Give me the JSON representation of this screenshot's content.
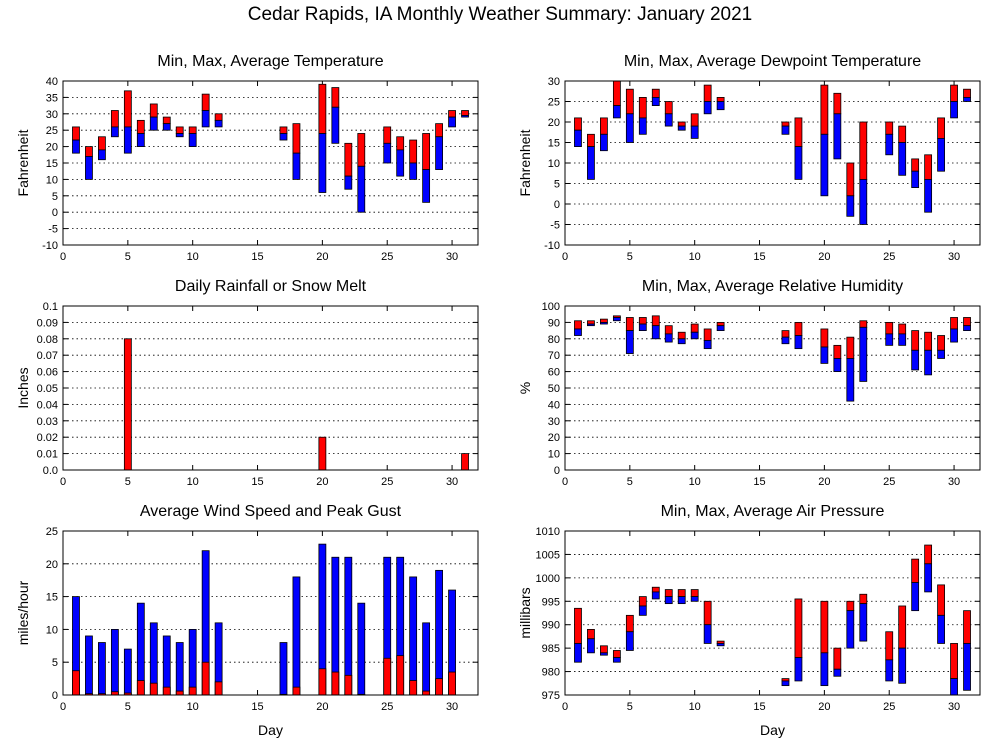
{
  "title": "Cedar Rapids, IA Monthly Weather Summary: January 2021",
  "colors": {
    "upper": "#ff0000",
    "lower": "#0000ff",
    "edge": "#000000"
  },
  "chart_data": [
    {
      "id": "temp",
      "type": "bar",
      "title": "Min, Max, Average Temperature",
      "ylabel": "Fahrenheit",
      "xlabel": "",
      "xlim": [
        0,
        32
      ],
      "ylim": [
        -10,
        40
      ],
      "xticks": [
        0,
        5,
        10,
        15,
        20,
        25,
        30
      ],
      "yticks": [
        -10,
        -5,
        0,
        5,
        10,
        15,
        20,
        25,
        30,
        35,
        40
      ],
      "grid": true,
      "points": [
        {
          "day": 1,
          "min": 18,
          "avg": 22,
          "max": 26
        },
        {
          "day": 2,
          "min": 10,
          "avg": 17,
          "max": 20
        },
        {
          "day": 3,
          "min": 16,
          "avg": 19,
          "max": 23
        },
        {
          "day": 4,
          "min": 23,
          "avg": 26,
          "max": 31
        },
        {
          "day": 5,
          "min": 18,
          "avg": 26,
          "max": 37
        },
        {
          "day": 6,
          "min": 20,
          "avg": 24,
          "max": 28
        },
        {
          "day": 7,
          "min": 25,
          "avg": 29,
          "max": 33
        },
        {
          "day": 8,
          "min": 25,
          "avg": 27,
          "max": 29
        },
        {
          "day": 9,
          "min": 23,
          "avg": 24,
          "max": 26
        },
        {
          "day": 10,
          "min": 20,
          "avg": 24,
          "max": 26
        },
        {
          "day": 11,
          "min": 26,
          "avg": 31,
          "max": 36
        },
        {
          "day": 12,
          "min": 26,
          "avg": 28,
          "max": 30
        },
        {
          "day": 17,
          "min": 22,
          "avg": 24,
          "max": 26
        },
        {
          "day": 18,
          "min": 10,
          "avg": 18,
          "max": 27
        },
        {
          "day": 20,
          "min": 6,
          "avg": 24,
          "max": 39
        },
        {
          "day": 21,
          "min": 21,
          "avg": 32,
          "max": 38
        },
        {
          "day": 22,
          "min": 7,
          "avg": 11,
          "max": 21
        },
        {
          "day": 23,
          "min": 0,
          "avg": 14,
          "max": 24
        },
        {
          "day": 25,
          "min": 15,
          "avg": 21,
          "max": 26
        },
        {
          "day": 26,
          "min": 11,
          "avg": 19,
          "max": 23
        },
        {
          "day": 27,
          "min": 10,
          "avg": 15,
          "max": 22
        },
        {
          "day": 28,
          "min": 3,
          "avg": 13,
          "max": 24
        },
        {
          "day": 29,
          "min": 13,
          "avg": 23,
          "max": 27
        },
        {
          "day": 30,
          "min": 26,
          "avg": 29,
          "max": 31
        },
        {
          "day": 31,
          "min": 29,
          "avg": 29.5,
          "max": 31
        }
      ]
    },
    {
      "id": "dewpoint",
      "type": "bar",
      "title": "Min, Max, Average Dewpoint Temperature",
      "ylabel": "Fahrenheit",
      "xlabel": "",
      "xlim": [
        0,
        32
      ],
      "ylim": [
        -10,
        30
      ],
      "xticks": [
        0,
        5,
        10,
        15,
        20,
        25,
        30
      ],
      "yticks": [
        -10,
        -5,
        0,
        5,
        10,
        15,
        20,
        25,
        30
      ],
      "grid": true,
      "points": [
        {
          "day": 1,
          "min": 14,
          "avg": 18,
          "max": 21
        },
        {
          "day": 2,
          "min": 6,
          "avg": 14,
          "max": 17
        },
        {
          "day": 3,
          "min": 13,
          "avg": 17,
          "max": 21
        },
        {
          "day": 4,
          "min": 21,
          "avg": 24,
          "max": 30
        },
        {
          "day": 5,
          "min": 15,
          "avg": 22,
          "max": 28
        },
        {
          "day": 6,
          "min": 17,
          "avg": 21,
          "max": 26
        },
        {
          "day": 7,
          "min": 24,
          "avg": 26,
          "max": 28
        },
        {
          "day": 8,
          "min": 19,
          "avg": 22,
          "max": 25
        },
        {
          "day": 9,
          "min": 18,
          "avg": 19,
          "max": 20
        },
        {
          "day": 10,
          "min": 16,
          "avg": 19,
          "max": 22
        },
        {
          "day": 11,
          "min": 22,
          "avg": 25,
          "max": 29
        },
        {
          "day": 12,
          "min": 23,
          "avg": 25,
          "max": 26
        },
        {
          "day": 17,
          "min": 17,
          "avg": 19,
          "max": 20
        },
        {
          "day": 18,
          "min": 6,
          "avg": 14,
          "max": 21
        },
        {
          "day": 20,
          "min": 2,
          "avg": 17,
          "max": 29
        },
        {
          "day": 21,
          "min": 11,
          "avg": 22,
          "max": 27
        },
        {
          "day": 22,
          "min": -3,
          "avg": 2,
          "max": 10
        },
        {
          "day": 23,
          "min": -5,
          "avg": 6,
          "max": 20
        },
        {
          "day": 25,
          "min": 12,
          "avg": 17,
          "max": 20
        },
        {
          "day": 26,
          "min": 7,
          "avg": 15,
          "max": 19
        },
        {
          "day": 27,
          "min": 4,
          "avg": 8,
          "max": 11
        },
        {
          "day": 28,
          "min": -2,
          "avg": 6,
          "max": 12
        },
        {
          "day": 29,
          "min": 8,
          "avg": 16,
          "max": 21
        },
        {
          "day": 30,
          "min": 21,
          "avg": 25,
          "max": 29
        },
        {
          "day": 31,
          "min": 25,
          "avg": 26,
          "max": 28
        }
      ]
    },
    {
      "id": "rain",
      "type": "bar",
      "title": "Daily Rainfall or Snow Melt",
      "ylabel": "Inches",
      "xlabel": "",
      "xlim": [
        0,
        32
      ],
      "ylim": [
        0,
        0.1
      ],
      "xticks": [
        0,
        5,
        10,
        15,
        20,
        25,
        30
      ],
      "yticks": [
        0,
        0.01,
        0.02,
        0.03,
        0.04,
        0.05,
        0.06,
        0.07,
        0.08,
        0.09,
        0.1
      ],
      "ytick_labels": [
        "0.0",
        "0.01",
        "0.02",
        "0.03",
        "0.04",
        "0.05",
        "0.06",
        "0.07",
        "0.08",
        "0.09",
        "0.1"
      ],
      "grid": true,
      "points": [
        {
          "day": 5,
          "value": 0.08
        },
        {
          "day": 20,
          "value": 0.02
        },
        {
          "day": 31,
          "value": 0.01
        }
      ]
    },
    {
      "id": "humidity",
      "type": "bar",
      "title": "Min, Max, Average Relative Humidity",
      "ylabel": "%",
      "xlabel": "",
      "xlim": [
        0,
        32
      ],
      "ylim": [
        0,
        100
      ],
      "xticks": [
        0,
        5,
        10,
        15,
        20,
        25,
        30
      ],
      "yticks": [
        0,
        10,
        20,
        30,
        40,
        50,
        60,
        70,
        80,
        90,
        100
      ],
      "grid": true,
      "points": [
        {
          "day": 1,
          "min": 82,
          "avg": 86,
          "max": 91
        },
        {
          "day": 2,
          "min": 88,
          "avg": 89,
          "max": 91
        },
        {
          "day": 3,
          "min": 89,
          "avg": 90,
          "max": 92
        },
        {
          "day": 4,
          "min": 91,
          "avg": 93,
          "max": 94
        },
        {
          "day": 5,
          "min": 71,
          "avg": 85,
          "max": 93
        },
        {
          "day": 6,
          "min": 85,
          "avg": 89,
          "max": 93
        },
        {
          "day": 7,
          "min": 80,
          "avg": 88,
          "max": 94
        },
        {
          "day": 8,
          "min": 78,
          "avg": 83,
          "max": 88
        },
        {
          "day": 9,
          "min": 77,
          "avg": 80,
          "max": 84
        },
        {
          "day": 10,
          "min": 80,
          "avg": 84,
          "max": 89
        },
        {
          "day": 11,
          "min": 74,
          "avg": 79,
          "max": 86
        },
        {
          "day": 12,
          "min": 85,
          "avg": 88,
          "max": 90
        },
        {
          "day": 17,
          "min": 77,
          "avg": 81,
          "max": 85
        },
        {
          "day": 18,
          "min": 74,
          "avg": 82,
          "max": 90
        },
        {
          "day": 20,
          "min": 65,
          "avg": 75,
          "max": 86
        },
        {
          "day": 21,
          "min": 60,
          "avg": 68,
          "max": 76
        },
        {
          "day": 22,
          "min": 42,
          "avg": 68,
          "max": 81
        },
        {
          "day": 23,
          "min": 54,
          "avg": 87,
          "max": 91
        },
        {
          "day": 25,
          "min": 76,
          "avg": 83,
          "max": 90
        },
        {
          "day": 26,
          "min": 76,
          "avg": 83,
          "max": 89
        },
        {
          "day": 27,
          "min": 61,
          "avg": 73,
          "max": 85
        },
        {
          "day": 28,
          "min": 58,
          "avg": 73,
          "max": 84
        },
        {
          "day": 29,
          "min": 68,
          "avg": 73,
          "max": 82
        },
        {
          "day": 30,
          "min": 78,
          "avg": 86,
          "max": 93
        },
        {
          "day": 31,
          "min": 85,
          "avg": 88,
          "max": 93
        }
      ]
    },
    {
      "id": "wind",
      "type": "bar",
      "title": "Average Wind Speed and Peak Gust",
      "ylabel": "miles/hour",
      "xlabel": "Day",
      "xlim": [
        0,
        32
      ],
      "ylim": [
        0,
        25
      ],
      "xticks": [
        0,
        5,
        10,
        15,
        20,
        25,
        30
      ],
      "yticks": [
        0,
        5,
        10,
        15,
        20,
        25
      ],
      "grid": true,
      "points": [
        {
          "day": 1,
          "avg": 3.7,
          "gust": 15
        },
        {
          "day": 2,
          "avg": 0.2,
          "gust": 9
        },
        {
          "day": 3,
          "avg": 0.2,
          "gust": 8
        },
        {
          "day": 4,
          "avg": 0.5,
          "gust": 10
        },
        {
          "day": 5,
          "avg": 0.3,
          "gust": 7
        },
        {
          "day": 6,
          "avg": 2.2,
          "gust": 14
        },
        {
          "day": 7,
          "avg": 1.8,
          "gust": 11
        },
        {
          "day": 8,
          "avg": 1.2,
          "gust": 9
        },
        {
          "day": 9,
          "avg": 0.6,
          "gust": 8
        },
        {
          "day": 10,
          "avg": 1.2,
          "gust": 10
        },
        {
          "day": 11,
          "avg": 5.0,
          "gust": 22
        },
        {
          "day": 12,
          "avg": 2.0,
          "gust": 11
        },
        {
          "day": 17,
          "avg": 0.1,
          "gust": 8
        },
        {
          "day": 18,
          "avg": 1.2,
          "gust": 18
        },
        {
          "day": 20,
          "avg": 4.0,
          "gust": 23
        },
        {
          "day": 21,
          "avg": 3.5,
          "gust": 21
        },
        {
          "day": 22,
          "avg": 3.0,
          "gust": 21
        },
        {
          "day": 23,
          "avg": 0.1,
          "gust": 14
        },
        {
          "day": 25,
          "avg": 5.6,
          "gust": 21
        },
        {
          "day": 26,
          "avg": 6.0,
          "gust": 21
        },
        {
          "day": 27,
          "avg": 2.2,
          "gust": 18
        },
        {
          "day": 28,
          "avg": 0.6,
          "gust": 11
        },
        {
          "day": 29,
          "avg": 2.5,
          "gust": 19
        },
        {
          "day": 30,
          "avg": 3.5,
          "gust": 16
        }
      ]
    },
    {
      "id": "pressure",
      "type": "bar",
      "title": "Min, Max, Average Air Pressure",
      "ylabel": "millibars",
      "xlabel": "Day",
      "xlim": [
        0,
        32
      ],
      "ylim": [
        975,
        1010
      ],
      "xticks": [
        0,
        5,
        10,
        15,
        20,
        25,
        30
      ],
      "yticks": [
        975,
        980,
        985,
        990,
        995,
        1000,
        1005,
        1010
      ],
      "grid": true,
      "points": [
        {
          "day": 1,
          "min": 982,
          "avg": 986,
          "max": 993.5
        },
        {
          "day": 2,
          "min": 984,
          "avg": 987,
          "max": 989
        },
        {
          "day": 3,
          "min": 983.5,
          "avg": 984,
          "max": 985.5
        },
        {
          "day": 4,
          "min": 982,
          "avg": 983,
          "max": 984.5
        },
        {
          "day": 5,
          "min": 984.5,
          "avg": 988.5,
          "max": 992
        },
        {
          "day": 6,
          "min": 992,
          "avg": 994,
          "max": 996
        },
        {
          "day": 7,
          "min": 995.5,
          "avg": 997,
          "max": 998
        },
        {
          "day": 8,
          "min": 994.5,
          "avg": 996,
          "max": 997.5
        },
        {
          "day": 9,
          "min": 994.5,
          "avg": 996,
          "max": 997.5
        },
        {
          "day": 10,
          "min": 995,
          "avg": 996,
          "max": 997.5
        },
        {
          "day": 11,
          "min": 986,
          "avg": 990,
          "max": 995
        },
        {
          "day": 12,
          "min": 985.5,
          "avg": 986,
          "max": 986.5
        },
        {
          "day": 17,
          "min": 977,
          "avg": 978,
          "max": 978.5
        },
        {
          "day": 18,
          "min": 978,
          "avg": 983,
          "max": 995.5
        },
        {
          "day": 20,
          "min": 977,
          "avg": 984,
          "max": 995
        },
        {
          "day": 21,
          "min": 979,
          "avg": 980.5,
          "max": 985
        },
        {
          "day": 22,
          "min": 985,
          "avg": 993,
          "max": 995
        },
        {
          "day": 23,
          "min": 986.5,
          "avg": 994.5,
          "max": 996.5
        },
        {
          "day": 25,
          "min": 978,
          "avg": 982.5,
          "max": 988.5
        },
        {
          "day": 26,
          "min": 977.5,
          "avg": 985,
          "max": 994
        },
        {
          "day": 27,
          "min": 993,
          "avg": 999,
          "max": 1004
        },
        {
          "day": 28,
          "min": 997,
          "avg": 1003,
          "max": 1007
        },
        {
          "day": 29,
          "min": 986,
          "avg": 992,
          "max": 998.5
        },
        {
          "day": 30,
          "min": 975,
          "avg": 978.5,
          "max": 986
        },
        {
          "day": 31,
          "min": 976,
          "avg": 986,
          "max": 993
        }
      ]
    }
  ]
}
